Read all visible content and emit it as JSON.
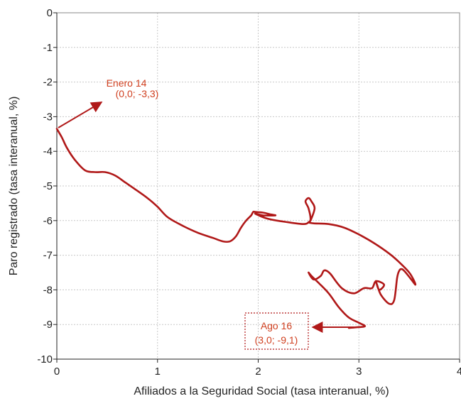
{
  "chart_data": {
    "type": "line",
    "title": "",
    "xlabel": "Afiliados a la Seguridad Social (tasa interanual, %)",
    "ylabel": "Paro registrado (tasa interanual, %)",
    "xlim": [
      0,
      4
    ],
    "ylim": [
      -10,
      0
    ],
    "x_ticks": [
      "0",
      "1",
      "2",
      "3",
      "4"
    ],
    "y_ticks": [
      "0",
      "-1",
      "-2",
      "-3",
      "-4",
      "-5",
      "-6",
      "-7",
      "-8",
      "-9",
      "-10"
    ],
    "grid": true,
    "series_color": "#b01818",
    "annotation_color": "#d04020",
    "annotations": [
      {
        "line1": "Enero 14",
        "line2": "(0,0; -3,3)"
      },
      {
        "line1": "Ago 16",
        "line2": "(3,0; -9,1)"
      }
    ],
    "series": [
      {
        "x": [
          0.0,
          0.05,
          0.1,
          0.18,
          0.28,
          0.38,
          0.48,
          0.58,
          0.68,
          0.78,
          0.9,
          1.0,
          1.1,
          1.25,
          1.4,
          1.55,
          1.65,
          1.72,
          1.78,
          1.83,
          1.88,
          1.93,
          1.95,
          1.97,
          2.05,
          2.12,
          2.17,
          2.05,
          1.97,
          2.1,
          2.3,
          2.45,
          2.5,
          2.52,
          2.5,
          2.47,
          2.5,
          2.53,
          2.56,
          2.52,
          2.5,
          2.55,
          2.7,
          2.85,
          3.0,
          3.15,
          3.3,
          3.4,
          3.5,
          3.55,
          3.56,
          3.52,
          3.45,
          3.42,
          3.4,
          3.38,
          3.35,
          3.3,
          3.22,
          3.18,
          3.17,
          3.2,
          3.25,
          3.17,
          3.13,
          3.05,
          2.95,
          2.83,
          2.72,
          2.68,
          2.65,
          2.62,
          2.55,
          2.5,
          2.53,
          2.6,
          2.7,
          2.8,
          2.9,
          3.0,
          3.06,
          2.98,
          2.9
        ],
        "y": [
          -3.35,
          -3.6,
          -3.9,
          -4.25,
          -4.55,
          -4.6,
          -4.6,
          -4.7,
          -4.9,
          -5.1,
          -5.35,
          -5.6,
          -5.9,
          -6.15,
          -6.35,
          -6.5,
          -6.6,
          -6.6,
          -6.45,
          -6.2,
          -6.0,
          -5.85,
          -5.75,
          -5.75,
          -5.77,
          -5.82,
          -5.85,
          -5.85,
          -5.8,
          -5.95,
          -6.05,
          -6.1,
          -6.05,
          -5.95,
          -5.65,
          -5.45,
          -5.35,
          -5.45,
          -5.65,
          -6.0,
          -6.05,
          -6.08,
          -6.1,
          -6.2,
          -6.4,
          -6.65,
          -6.95,
          -7.2,
          -7.5,
          -7.75,
          -7.85,
          -7.7,
          -7.45,
          -7.4,
          -7.45,
          -7.65,
          -8.3,
          -8.4,
          -8.15,
          -7.85,
          -7.75,
          -8.0,
          -7.85,
          -7.75,
          -7.95,
          -7.95,
          -8.1,
          -7.95,
          -7.55,
          -7.45,
          -7.45,
          -7.6,
          -7.7,
          -7.5,
          -7.6,
          -7.8,
          -8.1,
          -8.5,
          -8.8,
          -8.95,
          -9.05,
          -9.08,
          -9.1
        ]
      }
    ]
  }
}
